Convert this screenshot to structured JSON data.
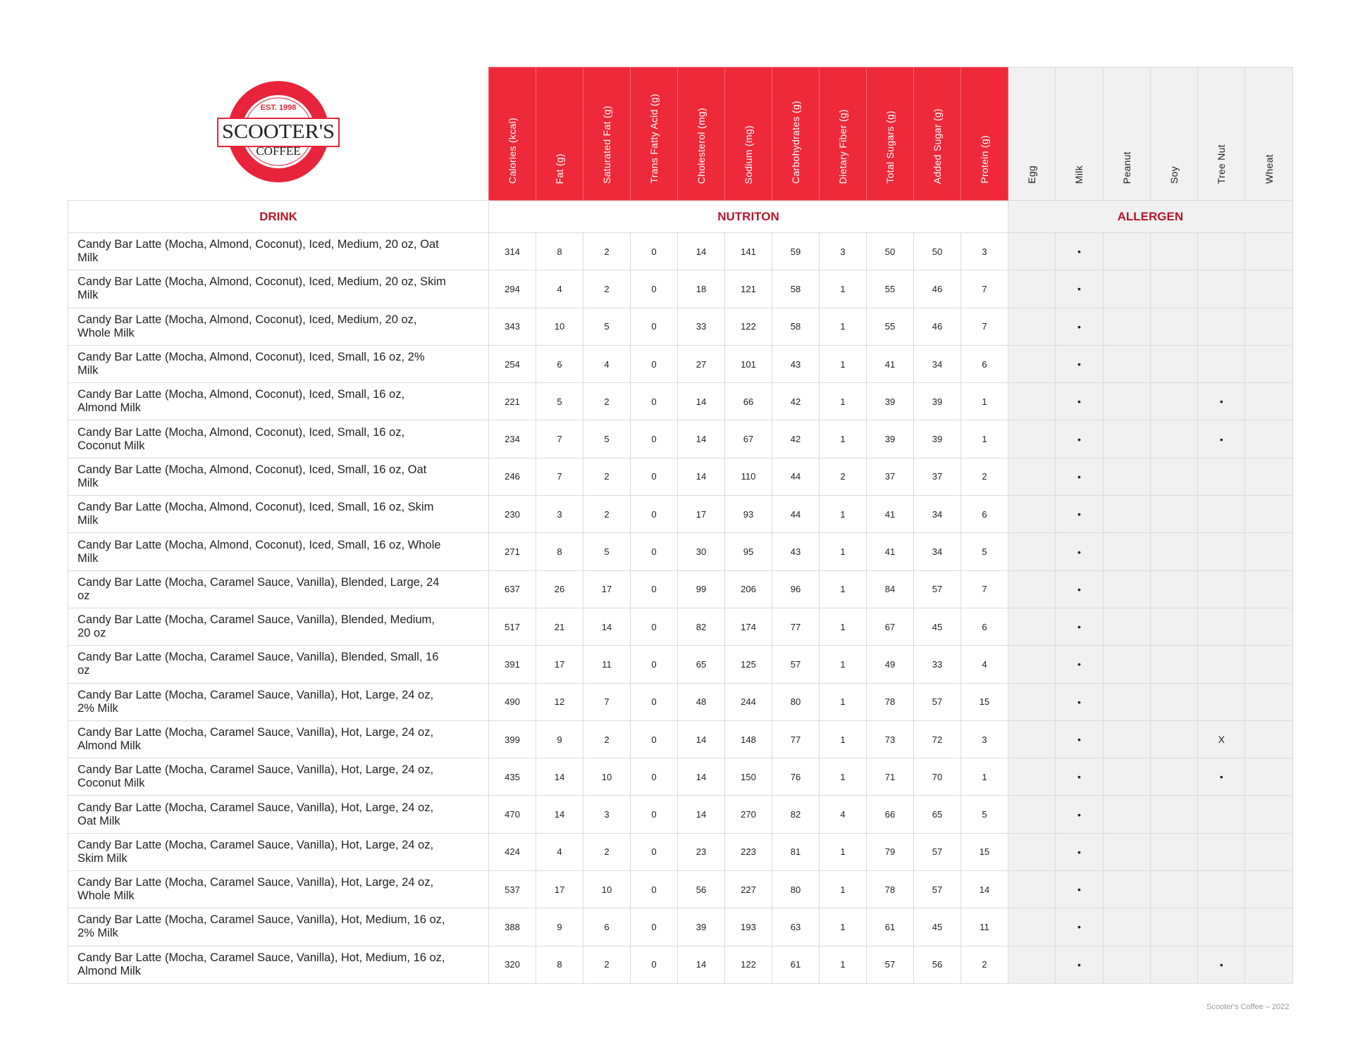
{
  "logo": {
    "est": "EST. 1998",
    "name": "SCOOTER'S",
    "sub": "COFFEE",
    "color": "#e8243a"
  },
  "headers": {
    "nutrition": [
      "Calories (kcal)",
      "Fat (g)",
      "Saturated Fat (g)",
      "Trans Fatty Acid (g)",
      "Cholesterol (mg)",
      "Sodium (mg)",
      "Carbohydrates (g)",
      "Dietary Fiber (g)",
      "Total Sugars (g)",
      "Added Sugar (g)",
      "Protein (g)"
    ],
    "allergens": [
      "Egg",
      "Milk",
      "Peanut",
      "Soy",
      "Tree Nut",
      "Wheat"
    ]
  },
  "sections": {
    "drink": "DRINK",
    "nutrition": "NUTRITON",
    "allergen": "ALLERGEN"
  },
  "colors": {
    "accent": "#ee2a3a",
    "section_text": "#b5172a",
    "allergen_bg": "#f1f1f1"
  },
  "rows": [
    {
      "drink": "Candy Bar Latte (Mocha, Almond, Coconut), Iced, Medium, 20 oz, Oat Milk",
      "n": [
        "314",
        "8",
        "2",
        "0",
        "14",
        "141",
        "59",
        "3",
        "50",
        "50",
        "3"
      ],
      "a": [
        "",
        "•",
        "",
        "",
        "",
        ""
      ]
    },
    {
      "drink": "Candy Bar Latte (Mocha, Almond, Coconut), Iced, Medium, 20 oz, Skim Milk",
      "n": [
        "294",
        "4",
        "2",
        "0",
        "18",
        "121",
        "58",
        "1",
        "55",
        "46",
        "7"
      ],
      "a": [
        "",
        "•",
        "",
        "",
        "",
        ""
      ]
    },
    {
      "drink": "Candy Bar Latte (Mocha, Almond, Coconut), Iced, Medium, 20 oz, Whole Milk",
      "n": [
        "343",
        "10",
        "5",
        "0",
        "33",
        "122",
        "58",
        "1",
        "55",
        "46",
        "7"
      ],
      "a": [
        "",
        "•",
        "",
        "",
        "",
        ""
      ]
    },
    {
      "drink": "Candy Bar Latte (Mocha, Almond, Coconut), Iced, Small, 16 oz, 2% Milk",
      "n": [
        "254",
        "6",
        "4",
        "0",
        "27",
        "101",
        "43",
        "1",
        "41",
        "34",
        "6"
      ],
      "a": [
        "",
        "•",
        "",
        "",
        "",
        ""
      ]
    },
    {
      "drink": "Candy Bar Latte (Mocha, Almond, Coconut), Iced, Small, 16 oz, Almond Milk",
      "n": [
        "221",
        "5",
        "2",
        "0",
        "14",
        "66",
        "42",
        "1",
        "39",
        "39",
        "1"
      ],
      "a": [
        "",
        "•",
        "",
        "",
        "•",
        ""
      ]
    },
    {
      "drink": "Candy Bar Latte (Mocha, Almond, Coconut), Iced, Small, 16 oz, Coconut Milk",
      "n": [
        "234",
        "7",
        "5",
        "0",
        "14",
        "67",
        "42",
        "1",
        "39",
        "39",
        "1"
      ],
      "a": [
        "",
        "•",
        "",
        "",
        "•",
        ""
      ]
    },
    {
      "drink": "Candy Bar Latte (Mocha, Almond, Coconut), Iced, Small, 16 oz, Oat Milk",
      "n": [
        "246",
        "7",
        "2",
        "0",
        "14",
        "110",
        "44",
        "2",
        "37",
        "37",
        "2"
      ],
      "a": [
        "",
        "•",
        "",
        "",
        "",
        ""
      ]
    },
    {
      "drink": "Candy Bar Latte (Mocha, Almond, Coconut), Iced, Small, 16 oz, Skim Milk",
      "n": [
        "230",
        "3",
        "2",
        "0",
        "17",
        "93",
        "44",
        "1",
        "41",
        "34",
        "6"
      ],
      "a": [
        "",
        "•",
        "",
        "",
        "",
        ""
      ]
    },
    {
      "drink": "Candy Bar Latte (Mocha, Almond, Coconut), Iced, Small, 16 oz, Whole Milk",
      "n": [
        "271",
        "8",
        "5",
        "0",
        "30",
        "95",
        "43",
        "1",
        "41",
        "34",
        "5"
      ],
      "a": [
        "",
        "•",
        "",
        "",
        "",
        ""
      ]
    },
    {
      "drink": "Candy Bar Latte (Mocha, Caramel Sauce, Vanilla), Blended, Large, 24 oz",
      "n": [
        "637",
        "26",
        "17",
        "0",
        "99",
        "206",
        "96",
        "1",
        "84",
        "57",
        "7"
      ],
      "a": [
        "",
        "•",
        "",
        "",
        "",
        ""
      ]
    },
    {
      "drink": "Candy Bar Latte (Mocha, Caramel Sauce, Vanilla), Blended, Medium, 20 oz",
      "n": [
        "517",
        "21",
        "14",
        "0",
        "82",
        "174",
        "77",
        "1",
        "67",
        "45",
        "6"
      ],
      "a": [
        "",
        "•",
        "",
        "",
        "",
        ""
      ]
    },
    {
      "drink": "Candy Bar Latte (Mocha, Caramel Sauce, Vanilla), Blended, Small, 16 oz",
      "n": [
        "391",
        "17",
        "11",
        "0",
        "65",
        "125",
        "57",
        "1",
        "49",
        "33",
        "4"
      ],
      "a": [
        "",
        "•",
        "",
        "",
        "",
        ""
      ]
    },
    {
      "drink": "Candy Bar Latte (Mocha, Caramel Sauce, Vanilla), Hot, Large, 24 oz, 2% Milk",
      "n": [
        "490",
        "12",
        "7",
        "0",
        "48",
        "244",
        "80",
        "1",
        "78",
        "57",
        "15"
      ],
      "a": [
        "",
        "•",
        "",
        "",
        "",
        ""
      ]
    },
    {
      "drink": "Candy Bar Latte (Mocha, Caramel Sauce, Vanilla), Hot, Large, 24 oz, Almond Milk",
      "n": [
        "399",
        "9",
        "2",
        "0",
        "14",
        "148",
        "77",
        "1",
        "73",
        "72",
        "3"
      ],
      "a": [
        "",
        "•",
        "",
        "",
        "X",
        ""
      ]
    },
    {
      "drink": "Candy Bar Latte (Mocha, Caramel Sauce, Vanilla), Hot, Large, 24 oz, Coconut Milk",
      "n": [
        "435",
        "14",
        "10",
        "0",
        "14",
        "150",
        "76",
        "1",
        "71",
        "70",
        "1"
      ],
      "a": [
        "",
        "•",
        "",
        "",
        "•",
        ""
      ]
    },
    {
      "drink": "Candy Bar Latte (Mocha, Caramel Sauce, Vanilla), Hot, Large, 24 oz, Oat Milk",
      "n": [
        "470",
        "14",
        "3",
        "0",
        "14",
        "270",
        "82",
        "4",
        "66",
        "65",
        "5"
      ],
      "a": [
        "",
        "•",
        "",
        "",
        "",
        ""
      ]
    },
    {
      "drink": "Candy Bar Latte (Mocha, Caramel Sauce, Vanilla), Hot, Large, 24 oz, Skim Milk",
      "n": [
        "424",
        "4",
        "2",
        "0",
        "23",
        "223",
        "81",
        "1",
        "79",
        "57",
        "15"
      ],
      "a": [
        "",
        "•",
        "",
        "",
        "",
        ""
      ]
    },
    {
      "drink": "Candy Bar Latte (Mocha, Caramel Sauce, Vanilla), Hot, Large, 24 oz, Whole Milk",
      "n": [
        "537",
        "17",
        "10",
        "0",
        "56",
        "227",
        "80",
        "1",
        "78",
        "57",
        "14"
      ],
      "a": [
        "",
        "•",
        "",
        "",
        "",
        ""
      ]
    },
    {
      "drink": "Candy Bar Latte (Mocha, Caramel Sauce, Vanilla), Hot, Medium, 16 oz, 2% Milk",
      "n": [
        "388",
        "9",
        "6",
        "0",
        "39",
        "193",
        "63",
        "1",
        "61",
        "45",
        "11"
      ],
      "a": [
        "",
        "•",
        "",
        "",
        "",
        ""
      ]
    },
    {
      "drink": "Candy Bar Latte (Mocha, Caramel Sauce, Vanilla), Hot, Medium, 16 oz, Almond Milk",
      "n": [
        "320",
        "8",
        "2",
        "0",
        "14",
        "122",
        "61",
        "1",
        "57",
        "56",
        "2"
      ],
      "a": [
        "",
        "•",
        "",
        "",
        "•",
        ""
      ]
    }
  ],
  "footer": "Scooter's Coffee – 2022"
}
